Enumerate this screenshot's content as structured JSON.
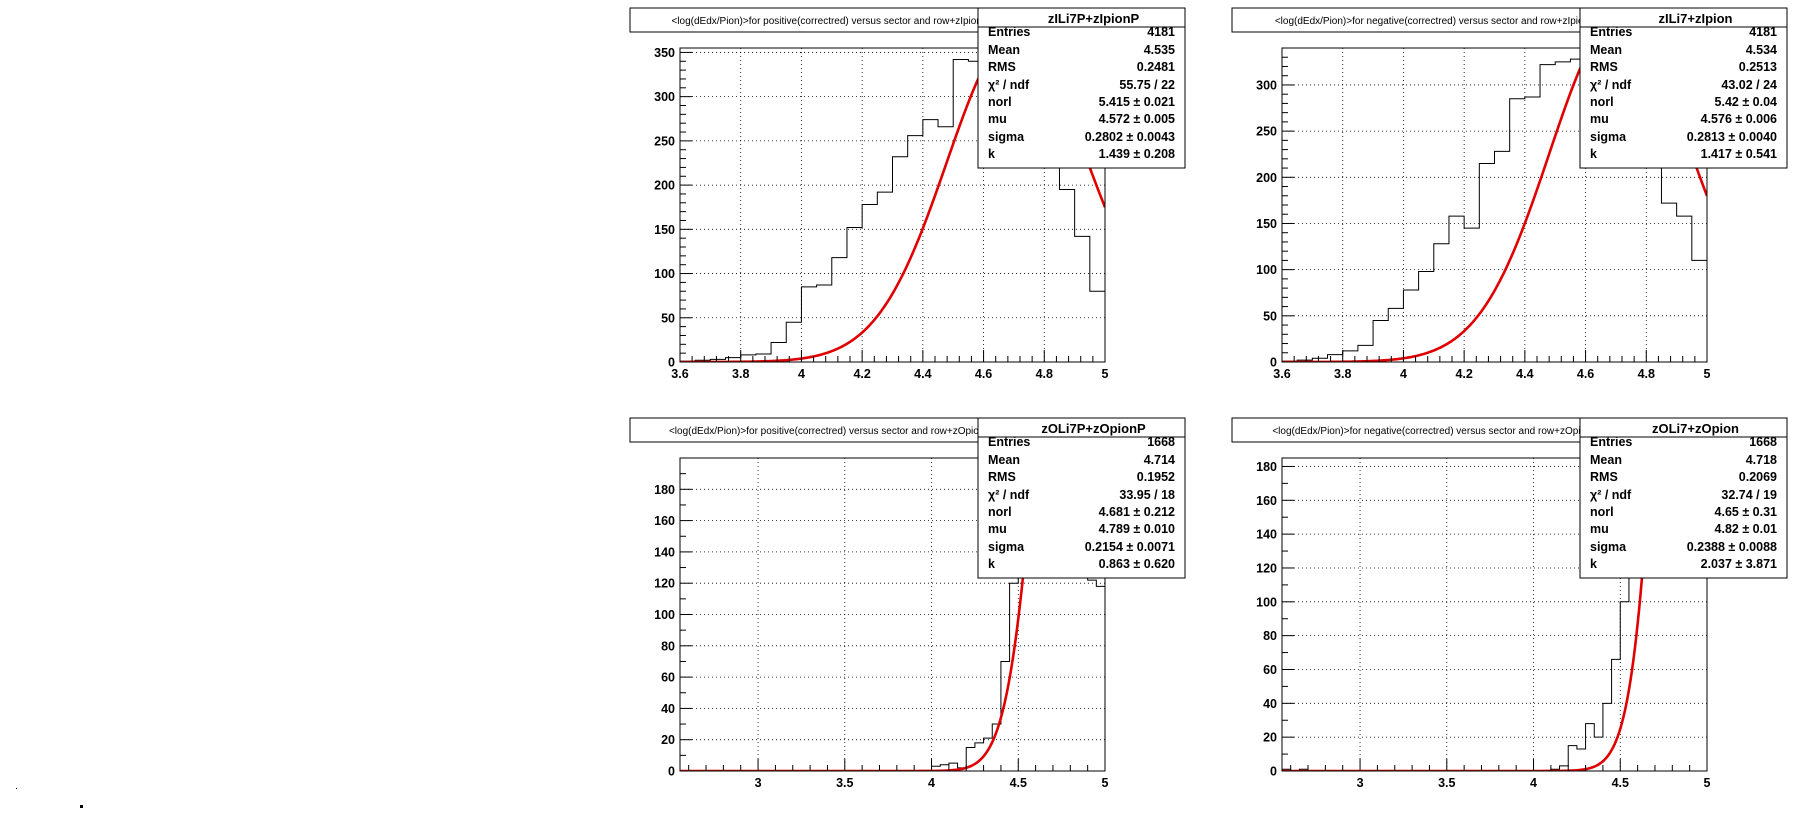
{
  "colors": {
    "fit": "#e00000",
    "hist": "#000000",
    "grid": "#000000"
  },
  "chart_data": [
    {
      "type": "histogram",
      "title": "<log(dEdx/Pion)>for positive(correctred) versus sector and row+zIpionP",
      "histname": "zILi7P+zIpionP",
      "xlim": [
        3.6,
        5.0
      ],
      "ylim": [
        0,
        355
      ],
      "xticks": [
        3.6,
        3.8,
        4,
        4.2,
        4.4,
        4.6,
        4.8,
        5
      ],
      "xtick_labels": [
        "3.6",
        "3.8",
        "4",
        "4.2",
        "4.4",
        "4.6",
        "4.8",
        "5"
      ],
      "yticks": [
        0,
        50,
        100,
        150,
        200,
        250,
        300,
        350
      ],
      "ytick_labels": [
        "0",
        "50",
        "100",
        "150",
        "200",
        "250",
        "300",
        "350"
      ],
      "x_minor": 5,
      "y_minor": 5,
      "bin_edges": [
        3.6,
        3.65,
        3.7,
        3.75,
        3.8,
        3.85,
        3.9,
        3.95,
        4.0,
        4.05,
        4.1,
        4.15,
        4.2,
        4.25,
        4.3,
        4.35,
        4.4,
        4.45,
        4.5,
        4.55,
        4.6,
        4.65,
        4.7,
        4.75,
        4.8,
        4.85,
        4.9,
        4.95,
        5.0
      ],
      "counts": [
        1,
        2,
        3,
        5,
        8,
        9,
        22,
        45,
        85,
        87,
        118,
        152,
        178,
        192,
        232,
        256,
        274,
        266,
        342,
        340,
        330,
        320,
        300,
        270,
        225,
        195,
        142,
        80
      ],
      "fit": {
        "norm": 312,
        "mu": 4.572,
        "sigma": 0.2802,
        "k": 1.439
      },
      "stats": [
        {
          "label": "Entries",
          "value": "4181"
        },
        {
          "label": "Mean",
          "value": "4.535"
        },
        {
          "label": "RMS",
          "value": "0.2481"
        },
        {
          "label": "χ² / ndf",
          "value": "55.75 / 22"
        },
        {
          "label": "norl",
          "value": "5.415 ± 0.021"
        },
        {
          "label": "mu",
          "value": "4.572 ± 0.005"
        },
        {
          "label": "sigma",
          "value": "0.2802 ± 0.0043"
        },
        {
          "label": "k",
          "value": "1.439 ± 0.208"
        }
      ]
    },
    {
      "type": "histogram",
      "title": "<log(dEdx/Pion)>for negative(correctred) versus sector and row+zIpion",
      "histname": "zILi7+zIpion",
      "xlim": [
        3.6,
        5.0
      ],
      "ylim": [
        0,
        340
      ],
      "xticks": [
        3.6,
        3.8,
        4,
        4.2,
        4.4,
        4.6,
        4.8,
        5
      ],
      "xtick_labels": [
        "3.6",
        "3.8",
        "4",
        "4.2",
        "4.4",
        "4.6",
        "4.8",
        "5"
      ],
      "yticks": [
        0,
        50,
        100,
        150,
        200,
        250,
        300
      ],
      "ytick_labels": [
        "0",
        "50",
        "100",
        "150",
        "200",
        "250",
        "300"
      ],
      "x_minor": 5,
      "y_minor": 5,
      "bin_edges": [
        3.6,
        3.65,
        3.7,
        3.75,
        3.8,
        3.85,
        3.9,
        3.95,
        4.0,
        4.05,
        4.1,
        4.15,
        4.2,
        4.25,
        4.3,
        4.35,
        4.4,
        4.45,
        4.5,
        4.55,
        4.6,
        4.65,
        4.7,
        4.75,
        4.8,
        4.85,
        4.9,
        4.95,
        5.0
      ],
      "counts": [
        1,
        2,
        4,
        8,
        12,
        18,
        45,
        58,
        78,
        98,
        128,
        158,
        145,
        215,
        228,
        285,
        287,
        322,
        325,
        328,
        322,
        312,
        290,
        255,
        215,
        172,
        158,
        110
      ],
      "fit": {
        "norm": 313,
        "mu": 4.576,
        "sigma": 0.2813,
        "k": 1.417
      },
      "stats": [
        {
          "label": "Entries",
          "value": "4181"
        },
        {
          "label": "Mean",
          "value": "4.534"
        },
        {
          "label": "RMS",
          "value": "0.2513"
        },
        {
          "label": "χ² / ndf",
          "value": "43.02 / 24"
        },
        {
          "label": "norl",
          "value": "5.42 ± 0.04"
        },
        {
          "label": "mu",
          "value": "4.576 ± 0.006"
        },
        {
          "label": "sigma",
          "value": "0.2813 ± 0.0040"
        },
        {
          "label": "k",
          "value": "1.417 ± 0.541"
        }
      ]
    },
    {
      "type": "histogram",
      "title": "<log(dEdx/Pion)>for positive(correctred) versus sector and row+zOpionP",
      "histname": "zOLi7P+zOpionP",
      "xlim": [
        2.55,
        5.0
      ],
      "ylim": [
        0,
        200
      ],
      "xticks": [
        3,
        3.5,
        4,
        4.5,
        5
      ],
      "xtick_labels": [
        "3",
        "3.5",
        "4",
        "4.5",
        "5"
      ],
      "yticks": [
        0,
        20,
        40,
        60,
        80,
        100,
        120,
        140,
        160,
        180
      ],
      "ytick_labels": [
        "0",
        "20",
        "40",
        "60",
        "80",
        "100",
        "120",
        "140",
        "160",
        "180"
      ],
      "x_minor": 5,
      "y_minor": 2,
      "bin_edges": [
        2.55,
        2.65,
        2.75,
        2.85,
        2.95,
        3.05,
        3.15,
        3.25,
        3.35,
        3.45,
        3.55,
        3.65,
        3.75,
        3.85,
        3.95,
        4.0,
        4.05,
        4.1,
        4.15,
        4.2,
        4.25,
        4.3,
        4.35,
        4.4,
        4.45,
        4.5,
        4.55,
        4.6,
        4.65,
        4.7,
        4.75,
        4.8,
        4.85,
        4.9,
        4.95,
        5.0
      ],
      "counts": [
        0,
        0,
        0,
        0,
        0,
        0,
        0,
        0,
        0,
        0,
        0,
        0,
        0,
        0,
        0,
        3,
        4,
        5,
        2,
        15,
        18,
        21,
        30,
        70,
        120,
        200,
        200,
        200,
        200,
        200,
        200,
        200,
        200,
        122,
        118
      ],
      "fit": {
        "norm": 500,
        "mu": 4.789,
        "sigma": 0.2154,
        "k": 0.863
      },
      "stats": [
        {
          "label": "Entries",
          "value": "1668"
        },
        {
          "label": "Mean",
          "value": "4.714"
        },
        {
          "label": "RMS",
          "value": "0.1952"
        },
        {
          "label": "χ² / ndf",
          "value": "33.95 / 18"
        },
        {
          "label": "norl",
          "value": "4.681 ± 0.212"
        },
        {
          "label": "mu",
          "value": "4.789 ± 0.010"
        },
        {
          "label": "sigma",
          "value": "0.2154 ± 0.0071"
        },
        {
          "label": "k",
          "value": "0.863 ± 0.620"
        }
      ]
    },
    {
      "type": "histogram",
      "title": "<log(dEdx/Pion)>for negative(correctred) versus sector and row+zOpion",
      "histname": "zOLi7+zOpion",
      "xlim": [
        2.55,
        5.0
      ],
      "ylim": [
        0,
        185
      ],
      "xticks": [
        3,
        3.5,
        4,
        4.5,
        5
      ],
      "xtick_labels": [
        "3",
        "3.5",
        "4",
        "4.5",
        "5"
      ],
      "yticks": [
        0,
        20,
        40,
        60,
        80,
        100,
        120,
        140,
        160,
        180
      ],
      "ytick_labels": [
        "0",
        "20",
        "40",
        "60",
        "80",
        "100",
        "120",
        "140",
        "160",
        "180"
      ],
      "x_minor": 5,
      "y_minor": 2,
      "bin_edges": [
        2.55,
        2.6,
        2.65,
        2.7,
        2.75,
        2.85,
        2.95,
        3.05,
        3.15,
        3.25,
        3.35,
        3.45,
        3.55,
        3.65,
        3.75,
        3.85,
        3.95,
        4.05,
        4.1,
        4.15,
        4.2,
        4.25,
        4.3,
        4.35,
        4.4,
        4.45,
        4.5,
        4.55,
        4.6,
        4.65,
        4.7,
        4.75,
        4.8,
        4.85,
        4.9,
        4.95,
        5.0
      ],
      "counts": [
        1,
        0,
        1,
        0,
        0,
        0,
        0,
        0,
        0,
        0,
        0,
        0,
        0,
        0,
        0,
        0,
        0,
        0,
        1,
        3,
        15,
        13,
        28,
        20,
        40,
        66,
        100,
        185,
        185,
        185,
        185,
        185,
        185,
        185,
        185,
        185
      ],
      "fit": {
        "norm": 500,
        "mu": 4.82,
        "sigma": 0.2388,
        "k": 2.037
      },
      "stats": [
        {
          "label": "Entries",
          "value": "1668"
        },
        {
          "label": "Mean",
          "value": "4.718"
        },
        {
          "label": "RMS",
          "value": "0.2069"
        },
        {
          "label": "χ² / ndf",
          "value": "32.74 / 19"
        },
        {
          "label": "norl",
          "value": "4.65 ± 0.31"
        },
        {
          "label": "mu",
          "value": "4.82 ± 0.01"
        },
        {
          "label": "sigma",
          "value": "0.2388 ± 0.0088"
        },
        {
          "label": "k",
          "value": "2.037 ± 3.871"
        }
      ]
    }
  ]
}
